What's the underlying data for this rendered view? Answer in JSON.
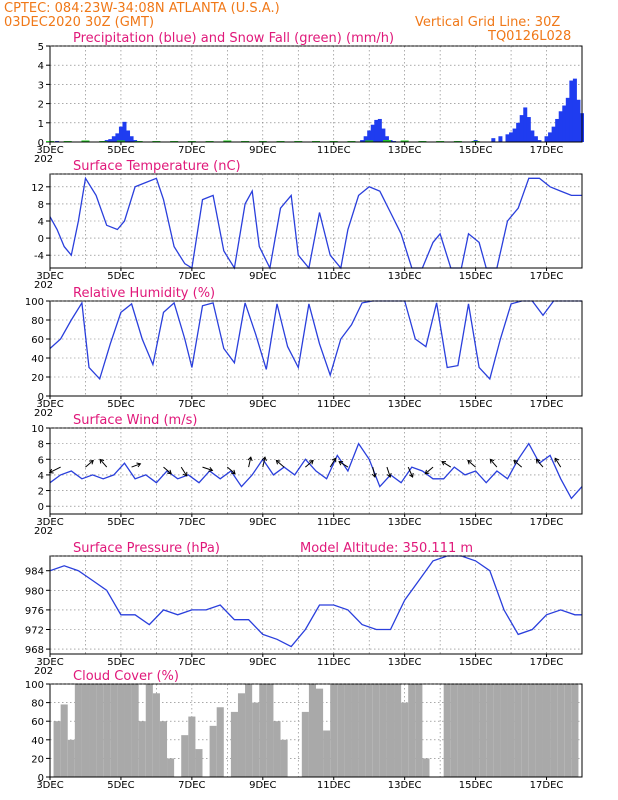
{
  "header": {
    "line1": "CPTEC:   084:23W-34:08N   ATLANTA (U.S.A.)",
    "line2_left": "03DEC2020 30Z (GMT)",
    "line2_right": "Vertical Grid Line: 30Z",
    "line3_right": "TQ0126L028"
  },
  "x_axis": {
    "first_day": 3,
    "last_day": 18,
    "tick_labels": [
      "3DEC",
      "5DEC",
      "7DEC",
      "9DEC",
      "11DEC",
      "13DEC",
      "15DEC",
      "17DEC"
    ],
    "year_fragment": "202"
  },
  "colors": {
    "header": "#f07818",
    "title": "#e0187a",
    "line": "#2a3fdc",
    "precip": "#1f3cf0",
    "snow": "#22cc22",
    "cloud": "#a9a9a9"
  },
  "chart_data": [
    {
      "type": "bar",
      "title": "Precipitation (blue) and Snow Fall (green) (mm/h)",
      "ylim": [
        0,
        5
      ],
      "yticks": [
        0,
        1,
        2,
        3,
        4,
        5
      ],
      "series": [
        {
          "name": "Precipitation",
          "x": [
            3.2,
            4.5,
            4.6,
            4.7,
            4.8,
            4.9,
            5.0,
            5.1,
            5.2,
            5.3,
            5.4,
            5.5,
            11.8,
            11.9,
            12.0,
            12.1,
            12.2,
            12.3,
            12.4,
            12.5,
            12.6,
            12.7,
            13.5,
            14.5,
            15.0,
            15.5,
            15.7,
            15.9,
            16.0,
            16.1,
            16.2,
            16.3,
            16.4,
            16.5,
            16.6,
            16.7,
            16.8,
            17.0,
            17.1,
            17.2,
            17.3,
            17.4,
            17.5,
            17.6,
            17.7,
            17.8,
            17.9,
            18.0
          ],
          "values": [
            0.05,
            0.05,
            0.1,
            0.15,
            0.3,
            0.45,
            0.8,
            1.05,
            0.6,
            0.3,
            0.1,
            0.05,
            0.1,
            0.3,
            0.6,
            0.9,
            1.15,
            1.2,
            0.7,
            0.3,
            0.1,
            0.05,
            0.05,
            0.05,
            0.1,
            0.2,
            0.3,
            0.4,
            0.5,
            0.7,
            1.0,
            1.4,
            1.8,
            1.3,
            0.6,
            0.3,
            0.1,
            0.3,
            0.5,
            0.8,
            1.2,
            1.6,
            1.9,
            2.3,
            3.2,
            3.3,
            2.2,
            1.5
          ]
        },
        {
          "name": "Snow Fall",
          "x": [
            3.0,
            3.5,
            4.0,
            4.5,
            5.0,
            5.5,
            6.0,
            6.5,
            7.0,
            7.5,
            8.0,
            8.5,
            9.0,
            9.5,
            10.0,
            10.5,
            11.0,
            11.5,
            12.0,
            12.5,
            13.0,
            13.5,
            14.0,
            14.5,
            15.0
          ],
          "values": [
            0.05,
            0.05,
            0.08,
            0.05,
            0.08,
            0.05,
            0.05,
            0.05,
            0.05,
            0.05,
            0.08,
            0.05,
            0.05,
            0.05,
            0.05,
            0.05,
            0.05,
            0.05,
            0.08,
            0.1,
            0.08,
            0.05,
            0.05,
            0.05,
            0.05
          ]
        }
      ]
    },
    {
      "type": "line",
      "title": "Surface Temperature (nC)",
      "ylim": [
        -7,
        15
      ],
      "yticks": [
        -4,
        0,
        4,
        8,
        12
      ],
      "series": [
        {
          "x": [
            3.0,
            3.2,
            3.4,
            3.6,
            3.8,
            4.0,
            4.3,
            4.6,
            4.9,
            5.1,
            5.4,
            5.7,
            6.0,
            6.2,
            6.5,
            6.8,
            7.0,
            7.3,
            7.6,
            7.9,
            8.2,
            8.5,
            8.7,
            8.9,
            9.2,
            9.5,
            9.8,
            10.0,
            10.3,
            10.6,
            10.9,
            11.2,
            11.4,
            11.7,
            12.0,
            12.3,
            12.6,
            12.9,
            13.2,
            13.5,
            13.8,
            14.0,
            14.3,
            14.6,
            14.8,
            15.1,
            15.3,
            15.6,
            15.9,
            16.2,
            16.5,
            16.8,
            17.1,
            17.4,
            17.7,
            18.0
          ],
          "values": [
            5,
            2,
            -2,
            -4,
            4,
            14,
            10,
            3,
            2,
            4,
            12,
            13,
            14,
            9,
            -2,
            -6,
            -7,
            9,
            10,
            -3,
            -7,
            8,
            11,
            -2,
            -7,
            7,
            10,
            -4,
            -7,
            6,
            -4,
            -7,
            2,
            10,
            12,
            11,
            6,
            1,
            -7,
            -7,
            -1,
            1,
            -7,
            -7,
            1,
            -1,
            -7,
            -7,
            4,
            7,
            14,
            14,
            12,
            11,
            10,
            10
          ]
        }
      ]
    },
    {
      "type": "line",
      "title": "Relative Humidity (%)",
      "ylim": [
        0,
        100
      ],
      "yticks": [
        0,
        20,
        40,
        60,
        80,
        100
      ],
      "series": [
        {
          "x": [
            3.0,
            3.3,
            3.6,
            3.9,
            4.1,
            4.4,
            4.7,
            5.0,
            5.3,
            5.6,
            5.9,
            6.2,
            6.5,
            6.8,
            7.0,
            7.3,
            7.6,
            7.9,
            8.2,
            8.5,
            8.8,
            9.1,
            9.4,
            9.7,
            10.0,
            10.3,
            10.6,
            10.9,
            11.2,
            11.5,
            11.8,
            12.1,
            12.4,
            12.7,
            13.0,
            13.3,
            13.6,
            13.9,
            14.2,
            14.5,
            14.8,
            15.1,
            15.4,
            15.7,
            16.0,
            16.3,
            16.6,
            16.9,
            17.2,
            17.5,
            17.8,
            18.0
          ],
          "values": [
            50,
            60,
            80,
            98,
            30,
            18,
            55,
            88,
            97,
            60,
            33,
            88,
            98,
            60,
            30,
            95,
            98,
            50,
            35,
            98,
            65,
            28,
            97,
            52,
            30,
            97,
            55,
            22,
            60,
            75,
            98,
            100,
            100,
            100,
            100,
            60,
            52,
            98,
            30,
            32,
            97,
            30,
            18,
            60,
            97,
            100,
            100,
            85,
            100,
            100,
            100,
            100
          ]
        }
      ]
    },
    {
      "type": "line",
      "title": "Surface Wind (m/s)",
      "ylim": [
        -1,
        10
      ],
      "yticks": [
        0,
        2,
        4,
        6,
        8,
        10
      ],
      "series": [
        {
          "x": [
            3.0,
            3.3,
            3.6,
            3.9,
            4.2,
            4.5,
            4.8,
            5.1,
            5.4,
            5.7,
            6.0,
            6.3,
            6.6,
            6.9,
            7.2,
            7.5,
            7.8,
            8.1,
            8.4,
            8.7,
            9.0,
            9.3,
            9.6,
            9.9,
            10.2,
            10.5,
            10.8,
            11.1,
            11.4,
            11.7,
            12.0,
            12.3,
            12.6,
            12.9,
            13.2,
            13.5,
            13.8,
            14.1,
            14.4,
            14.7,
            15.0,
            15.3,
            15.6,
            15.9,
            16.2,
            16.5,
            16.8,
            17.1,
            17.4,
            17.7,
            18.0
          ],
          "values": [
            3,
            4,
            4.5,
            3.5,
            4,
            3.5,
            4,
            5.5,
            3.5,
            4,
            3,
            4.5,
            3.5,
            4,
            3,
            4.5,
            3.5,
            4.5,
            2.5,
            4,
            6,
            4,
            5,
            4,
            6,
            4.5,
            3.5,
            6.5,
            4.5,
            8,
            6,
            2.5,
            4,
            3,
            5,
            4.5,
            3.5,
            3.5,
            5,
            4,
            4.5,
            3,
            4.5,
            3.5,
            6,
            8,
            5.5,
            6.5,
            3.5,
            1,
            2.5
          ]
        }
      ],
      "vectors": [
        {
          "x": 3.3,
          "dir": [
            -1,
            -0.5
          ]
        },
        {
          "x": 4.0,
          "dir": [
            0.7,
            0.6
          ]
        },
        {
          "x": 4.6,
          "dir": [
            -0.6,
            0.7
          ]
        },
        {
          "x": 5.3,
          "dir": [
            0.8,
            0.3
          ]
        },
        {
          "x": 6.2,
          "dir": [
            0.7,
            -0.6
          ]
        },
        {
          "x": 6.7,
          "dir": [
            0.5,
            -0.8
          ]
        },
        {
          "x": 7.3,
          "dir": [
            0.9,
            -0.3
          ]
        },
        {
          "x": 8.0,
          "dir": [
            0.7,
            -0.6
          ]
        },
        {
          "x": 8.6,
          "dir": [
            0.2,
            0.9
          ]
        },
        {
          "x": 9.0,
          "dir": [
            0.2,
            0.9
          ]
        },
        {
          "x": 9.6,
          "dir": [
            -0.7,
            0.6
          ]
        },
        {
          "x": 10.2,
          "dir": [
            0.7,
            0.6
          ]
        },
        {
          "x": 10.9,
          "dir": [
            0.5,
            0.8
          ]
        },
        {
          "x": 11.4,
          "dir": [
            -0.8,
            0.5
          ]
        },
        {
          "x": 12.1,
          "dir": [
            0.2,
            -0.9
          ]
        },
        {
          "x": 12.5,
          "dir": [
            0.3,
            -0.9
          ]
        },
        {
          "x": 13.1,
          "dir": [
            0.4,
            -0.9
          ]
        },
        {
          "x": 13.8,
          "dir": [
            -0.7,
            -0.6
          ]
        },
        {
          "x": 14.3,
          "dir": [
            -0.8,
            0.5
          ]
        },
        {
          "x": 15.0,
          "dir": [
            -0.7,
            0.6
          ]
        },
        {
          "x": 15.6,
          "dir": [
            -0.6,
            0.7
          ]
        },
        {
          "x": 16.3,
          "dir": [
            -0.7,
            0.6
          ]
        },
        {
          "x": 16.9,
          "dir": [
            -0.6,
            0.7
          ]
        },
        {
          "x": 17.4,
          "dir": [
            -0.5,
            0.8
          ]
        }
      ]
    },
    {
      "type": "line",
      "title": "Surface Pressure (hPa)",
      "subtitle": "Model Altitude: 350.111  m",
      "ylim": [
        967,
        987
      ],
      "yticks": [
        968,
        972,
        976,
        980,
        984
      ],
      "series": [
        {
          "x": [
            3.0,
            3.4,
            3.8,
            4.2,
            4.6,
            5.0,
            5.4,
            5.8,
            6.2,
            6.6,
            7.0,
            7.4,
            7.8,
            8.2,
            8.6,
            9.0,
            9.4,
            9.8,
            10.2,
            10.6,
            11.0,
            11.4,
            11.8,
            12.2,
            12.6,
            13.0,
            13.4,
            13.8,
            14.2,
            14.6,
            15.0,
            15.4,
            15.8,
            16.2,
            16.6,
            17.0,
            17.4,
            17.8,
            18.0
          ],
          "values": [
            984,
            985,
            984,
            982,
            980,
            975,
            975,
            973,
            976,
            975,
            976,
            976,
            977,
            974,
            974,
            971,
            970,
            968.5,
            972,
            977,
            977,
            976,
            973,
            972,
            972,
            978,
            982,
            986,
            987,
            987,
            986,
            984,
            976,
            971,
            972,
            975,
            976,
            975,
            975
          ]
        }
      ]
    },
    {
      "type": "bar",
      "title": "Cloud Cover (%)",
      "ylim": [
        0,
        100
      ],
      "yticks": [
        0,
        20,
        40,
        60,
        80,
        100
      ],
      "series": [
        {
          "x": [
            3.2,
            3.4,
            3.6,
            3.8,
            4.0,
            4.2,
            4.4,
            4.6,
            4.8,
            5.0,
            5.2,
            5.4,
            5.6,
            5.8,
            6.0,
            6.2,
            6.4,
            6.6,
            6.8,
            7.0,
            7.2,
            7.4,
            7.6,
            7.8,
            8.0,
            8.2,
            8.4,
            8.6,
            8.8,
            9.0,
            9.2,
            9.4,
            9.6,
            9.8,
            10.0,
            10.2,
            10.4,
            10.6,
            10.8,
            11.0,
            11.2,
            11.4,
            11.6,
            11.8,
            12.0,
            12.2,
            12.4,
            12.6,
            12.8,
            13.0,
            13.2,
            13.4,
            13.6,
            13.8,
            14.0,
            14.2,
            14.4,
            14.6,
            14.8,
            15.0,
            15.2,
            15.4,
            15.6,
            15.8,
            16.0,
            16.2,
            16.4,
            16.6,
            16.8,
            17.0,
            17.2,
            17.4,
            17.6,
            17.8
          ],
          "values": [
            60,
            78,
            40,
            100,
            100,
            100,
            100,
            100,
            100,
            100,
            100,
            100,
            60,
            100,
            90,
            60,
            20,
            0,
            45,
            65,
            30,
            0,
            55,
            75,
            0,
            70,
            90,
            100,
            80,
            100,
            100,
            60,
            40,
            0,
            0,
            70,
            100,
            95,
            50,
            100,
            100,
            100,
            100,
            100,
            100,
            100,
            100,
            100,
            100,
            80,
            100,
            100,
            20,
            0,
            0,
            100,
            100,
            100,
            100,
            100,
            100,
            100,
            100,
            100,
            100,
            100,
            100,
            100,
            100,
            100,
            100,
            100,
            100,
            100
          ]
        }
      ]
    }
  ]
}
